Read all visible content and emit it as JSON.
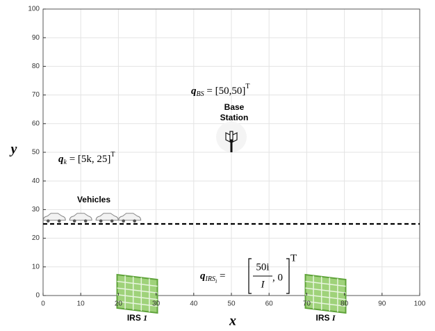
{
  "chart_data": {
    "type": "scatter",
    "xlabel": "x",
    "ylabel": "y",
    "xlim": [
      0,
      100
    ],
    "ylim": [
      0,
      100
    ],
    "xticks": [
      0,
      10,
      20,
      30,
      40,
      50,
      60,
      70,
      80,
      90,
      100
    ],
    "yticks": [
      0,
      10,
      20,
      30,
      40,
      50,
      60,
      70,
      80,
      90,
      100
    ],
    "grid": true,
    "reference_line": {
      "y": 25,
      "style": "dashed",
      "color": "#000000"
    },
    "base_station": {
      "label_lines": [
        "Base",
        "Station"
      ],
      "x": 50,
      "y": 50
    },
    "vehicles": {
      "label": "Vehicles",
      "x": [
        3,
        10,
        17,
        23
      ],
      "y": [
        27,
        27,
        27,
        27
      ]
    },
    "irs": [
      {
        "label": "IRS",
        "index": "1",
        "x": 25
      },
      {
        "label": "IRS",
        "index": "I",
        "x": 75
      }
    ],
    "annotations": [
      {
        "symbol": "q",
        "sub": "BS",
        "expr": " = [50,50]",
        "sup": "T"
      },
      {
        "symbol": "q",
        "sub": "k",
        "expr": " = [5k, 25]",
        "sup": "T"
      },
      {
        "symbol": "q",
        "sub": "IRS",
        "subsub": "i",
        "expr_left": " = ",
        "num": "50i",
        "den": "I",
        "expr_right": ", 0",
        "sup": "T"
      }
    ]
  }
}
